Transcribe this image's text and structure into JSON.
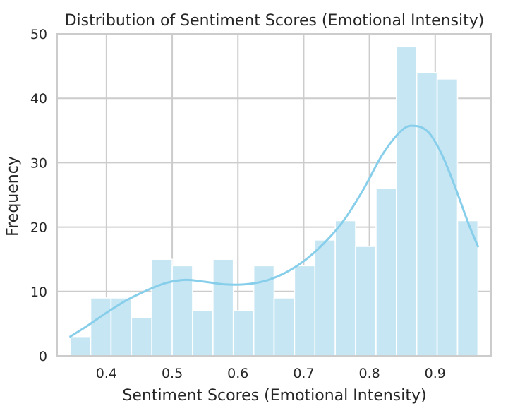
{
  "chart_data": {
    "type": "bar",
    "title": "Distribution of Sentiment Scores (Emotional Intensity)",
    "xlabel": "Sentiment Scores (Emotional Intensity)",
    "ylabel": "Frequency",
    "xlim": [
      0.325,
      0.985
    ],
    "ylim": [
      0,
      50
    ],
    "x_ticks": [
      0.4,
      0.5,
      0.6,
      0.7,
      0.8,
      0.9
    ],
    "x_tick_labels": [
      "0.4",
      "0.5",
      "0.6",
      "0.7",
      "0.8",
      "0.9"
    ],
    "y_ticks": [
      0,
      10,
      20,
      30,
      40,
      50
    ],
    "y_tick_labels": [
      "0",
      "10",
      "20",
      "30",
      "40",
      "50"
    ],
    "grid": true,
    "bin_edges": [
      0.345,
      0.376,
      0.407,
      0.438,
      0.469,
      0.5,
      0.531,
      0.562,
      0.593,
      0.624,
      0.655,
      0.686,
      0.717,
      0.748,
      0.779,
      0.81,
      0.841,
      0.872,
      0.903,
      0.934,
      0.965
    ],
    "counts": [
      3,
      9,
      9,
      6,
      15,
      14,
      7,
      15,
      7,
      14,
      9,
      14,
      18,
      21,
      17,
      26,
      48,
      44,
      43,
      21
    ],
    "kde": {
      "x": [
        0.345,
        0.37,
        0.4,
        0.43,
        0.46,
        0.49,
        0.52,
        0.55,
        0.58,
        0.61,
        0.64,
        0.67,
        0.7,
        0.73,
        0.76,
        0.79,
        0.82,
        0.85,
        0.87,
        0.89,
        0.91,
        0.93,
        0.95,
        0.965
      ],
      "y": [
        3,
        4.6,
        6.7,
        8.6,
        10.1,
        11.3,
        11.8,
        11.5,
        11.1,
        11.1,
        11.6,
        12.8,
        14.7,
        17.4,
        20.9,
        25.7,
        31.3,
        35.1,
        35.7,
        34.7,
        31.3,
        26.3,
        20.7,
        17
      ]
    },
    "colors": {
      "bar_fill": "#c6e6f3",
      "bar_edge": "#ffffff",
      "kde_line": "#87ceeb",
      "grid": "#cccccc",
      "axes_edge": "#cccccc",
      "text": "#262626"
    }
  }
}
